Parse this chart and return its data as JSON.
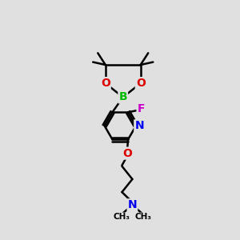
{
  "bg_color": "#e0e0e0",
  "bond_color": "#000000",
  "bond_width": 1.8,
  "atom_colors": {
    "B": "#00bb00",
    "O": "#dd0000",
    "N_pyridine": "#0000ee",
    "N_amine": "#0000ee",
    "F": "#cc00cc",
    "C": "#000000"
  },
  "figsize": [
    3.0,
    3.0
  ],
  "dpi": 100,
  "xlim": [
    0,
    10
  ],
  "ylim": [
    0,
    10
  ]
}
